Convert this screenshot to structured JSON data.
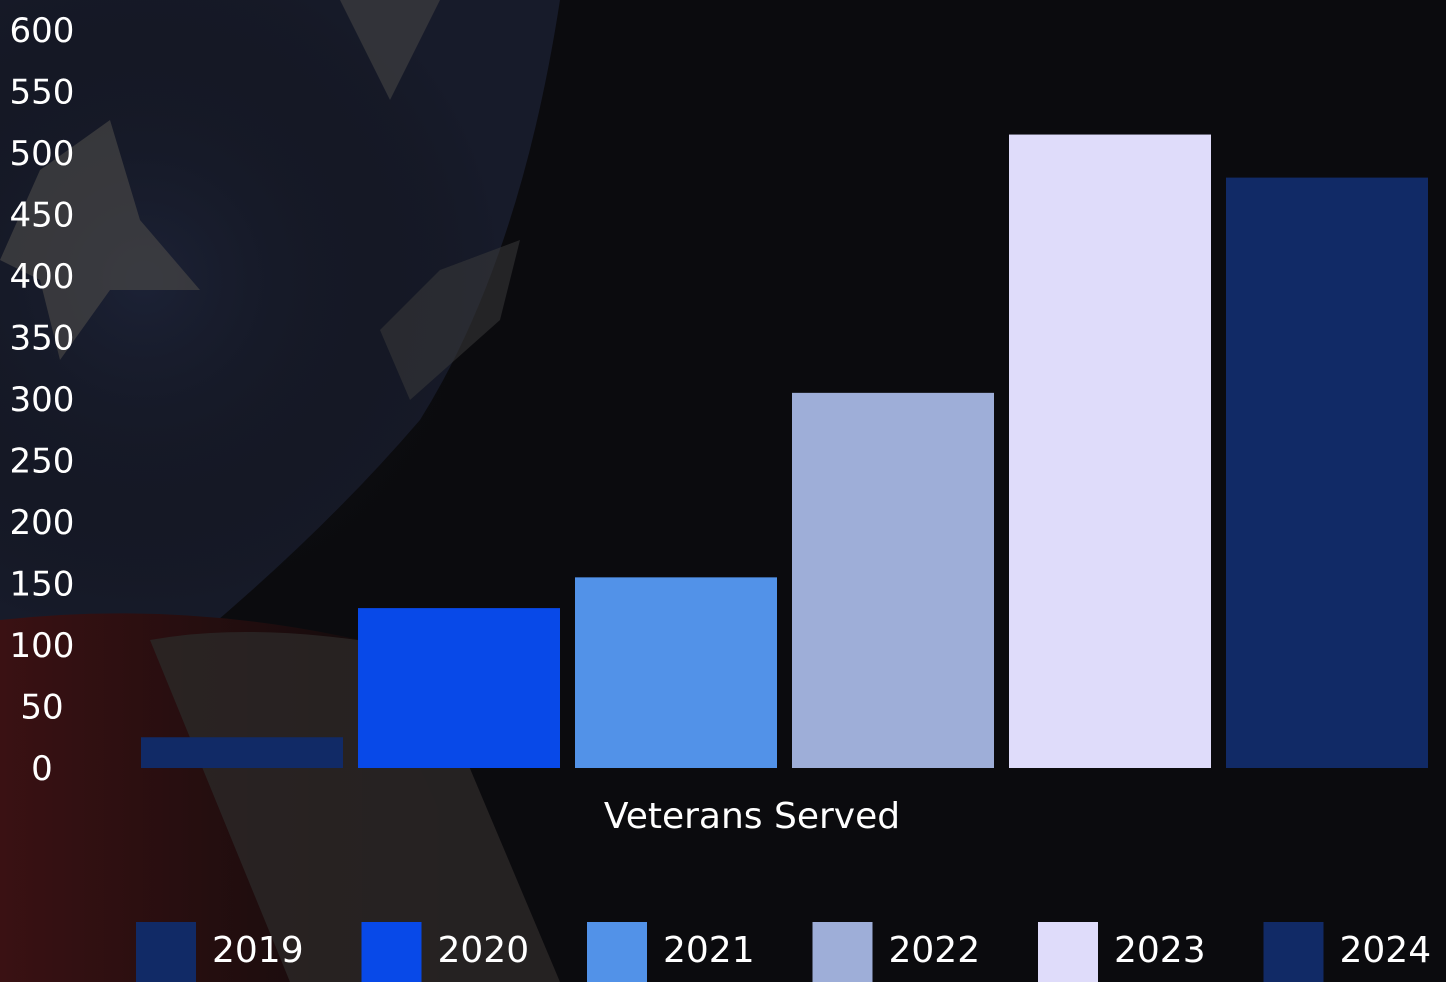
{
  "chart_data": {
    "type": "bar",
    "title": "",
    "xlabel": "Veterans Served",
    "ylabel": "",
    "ylim": [
      0,
      600
    ],
    "yticks": [
      0,
      50,
      100,
      150,
      200,
      250,
      300,
      350,
      400,
      450,
      500,
      550,
      600
    ],
    "categories": [
      "2019",
      "2020",
      "2021",
      "2022",
      "2023",
      "2024"
    ],
    "values": [
      25,
      130,
      155,
      305,
      515,
      480
    ],
    "colors": [
      "#112a66",
      "#0849e8",
      "#5292e8",
      "#9eaed8",
      "#dfdcfa",
      "#112a66"
    ],
    "legend": {
      "position": "bottom",
      "entries": [
        "2019",
        "2020",
        "2021",
        "2022",
        "2023",
        "2024"
      ]
    },
    "grid": false
  }
}
